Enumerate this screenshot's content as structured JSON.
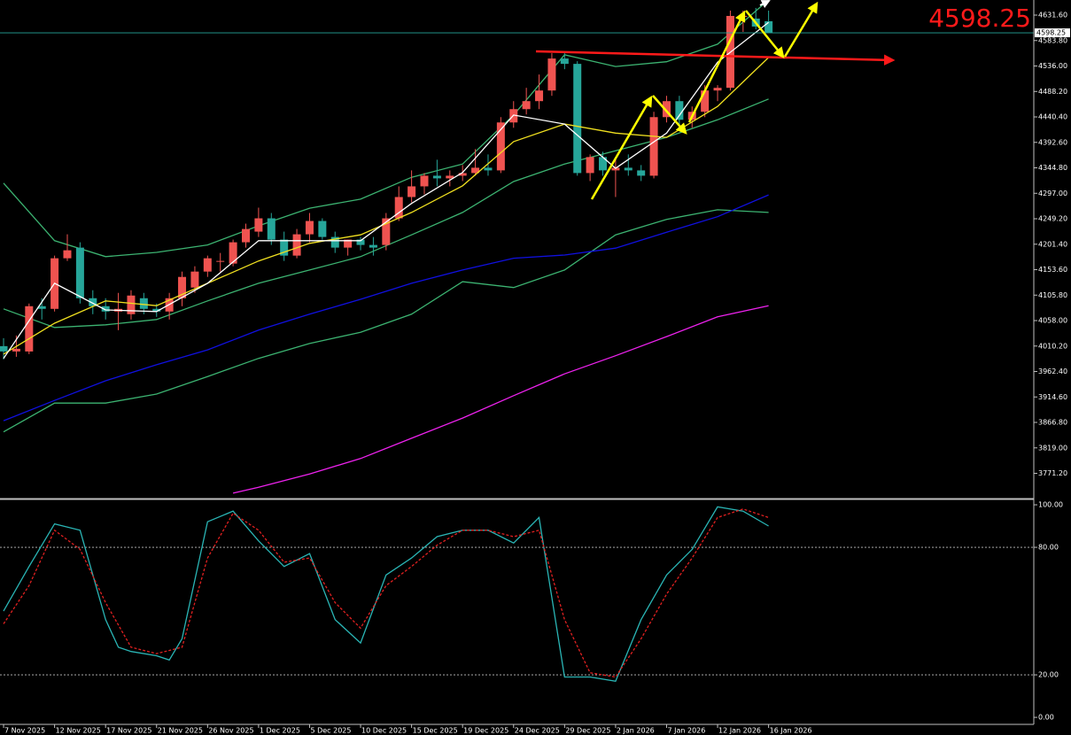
{
  "chart_data": [
    {
      "type": "candlestick",
      "xlim": [
        -0.28,
        80.8
      ],
      "ylim": [
        3725.5,
        4659.9
      ],
      "yticks": [
        {
          "value": 4631.6,
          "label": "4631.60"
        },
        {
          "value": 4583.8,
          "label": "4583.80"
        },
        {
          "value": 4536,
          "label": "4536.00"
        },
        {
          "value": 4488.2,
          "label": "4488.20"
        },
        {
          "value": 4440.4,
          "label": "4440.40"
        },
        {
          "value": 4392.6,
          "label": "4392.60"
        },
        {
          "value": 4344.8,
          "label": "4344.80"
        },
        {
          "value": 4297,
          "label": "4297.00"
        },
        {
          "value": 4249.2,
          "label": "4249.20"
        },
        {
          "value": 4201.4,
          "label": "4201.40"
        },
        {
          "value": 4153.6,
          "label": "4153.60"
        },
        {
          "value": 4105.8,
          "label": "4105.80"
        },
        {
          "value": 4058,
          "label": "4058.00"
        },
        {
          "value": 4010.2,
          "label": "4010.20"
        },
        {
          "value": 3962.4,
          "label": "3962.40"
        },
        {
          "value": 3914.6,
          "label": "3914.60"
        },
        {
          "value": 3866.8,
          "label": "3866.80"
        },
        {
          "value": 3819,
          "label": "3819.00"
        },
        {
          "value": 3771.2,
          "label": "3771.20"
        }
      ],
      "xticks": [
        {
          "value": 0,
          "label": "7 Nov 2025"
        },
        {
          "value": 4,
          "label": "12 Nov 2025"
        },
        {
          "value": 8,
          "label": "17 Nov 2025"
        },
        {
          "value": 12,
          "label": "21 Nov 2025"
        },
        {
          "value": 16,
          "label": "26 Nov 2025"
        },
        {
          "value": 20,
          "label": "1 Dec 2025"
        },
        {
          "value": 24,
          "label": "5 Dec 2025"
        },
        {
          "value": 28,
          "label": "10 Dec 2025"
        },
        {
          "value": 32,
          "label": "15 Dec 2025"
        },
        {
          "value": 36,
          "label": "19 Dec 2025"
        },
        {
          "value": 40,
          "label": "24 Dec 2025"
        },
        {
          "value": 44,
          "label": "29 Dec 2025"
        },
        {
          "value": 48,
          "label": "2 Jan 2026"
        },
        {
          "value": 52,
          "label": "7 Jan 2026"
        },
        {
          "value": 56,
          "label": "12 Jan 2026"
        },
        {
          "value": 60,
          "label": "16 Jan 2026"
        }
      ],
      "open": [
        4010,
        4000,
        4000,
        4085,
        4080,
        4175,
        4195,
        4100,
        4085,
        4075,
        4070,
        4100,
        4080,
        4075,
        4100,
        4120,
        4150,
        4170,
        4165,
        4205,
        4225,
        4250,
        4210,
        4180,
        4220,
        4245,
        4215,
        4195,
        4210,
        4200,
        4200,
        4250,
        4290,
        4310,
        4330,
        4325,
        4330,
        4335,
        4345,
        4340,
        4430,
        4455,
        4470,
        4490,
        4550,
        4540,
        4335,
        4365,
        4340,
        4345,
        4340,
        4330,
        4440,
        4470,
        4435,
        4450,
        4490,
        4495,
        4630,
        4625,
        4620
      ],
      "high": [
        4025,
        4030,
        4090,
        4100,
        4180,
        4220,
        4205,
        4115,
        4100,
        4110,
        4115,
        4110,
        4090,
        4110,
        4150,
        4160,
        4180,
        4185,
        4210,
        4240,
        4270,
        4260,
        4225,
        4230,
        4260,
        4250,
        4225,
        4210,
        4215,
        4215,
        4260,
        4310,
        4340,
        4335,
        4360,
        4340,
        4350,
        4380,
        4370,
        4440,
        4470,
        4495,
        4520,
        4560,
        4560,
        4545,
        4370,
        4375,
        4360,
        4370,
        4350,
        4450,
        4480,
        4480,
        4460,
        4500,
        4500,
        4640,
        4640,
        4645,
        4640
      ],
      "low": [
        3985,
        3990,
        3995,
        4060,
        4075,
        4170,
        4090,
        4070,
        4060,
        4040,
        4060,
        4070,
        4065,
        4060,
        4085,
        4110,
        4140,
        4150,
        4160,
        4195,
        4215,
        4200,
        4170,
        4175,
        4205,
        4210,
        4185,
        4180,
        4190,
        4180,
        4190,
        4245,
        4280,
        4295,
        4310,
        4310,
        4320,
        4330,
        4330,
        4335,
        4420,
        4445,
        4455,
        4480,
        4530,
        4330,
        4320,
        4330,
        4290,
        4330,
        4320,
        4325,
        4430,
        4425,
        4420,
        4440,
        4470,
        4490,
        4600,
        4605,
        4600
      ],
      "close": [
        4000,
        4005,
        4085,
        4080,
        4175,
        4190,
        4100,
        4085,
        4075,
        4080,
        4105,
        4080,
        4075,
        4100,
        4140,
        4150,
        4175,
        4170,
        4205,
        4230,
        4250,
        4210,
        4180,
        4220,
        4245,
        4215,
        4195,
        4210,
        4200,
        4195,
        4250,
        4290,
        4310,
        4330,
        4325,
        4330,
        4335,
        4345,
        4340,
        4430,
        4455,
        4470,
        4490,
        4550,
        4540,
        4335,
        4365,
        4340,
        4345,
        4340,
        4330,
        4440,
        4470,
        4435,
        4450,
        4490,
        4495,
        4630,
        4630,
        4610,
        4598.25
      ],
      "up_color": "#ef5350",
      "down_color": "#26a69a",
      "series": [
        {
          "color": "#3cb371",
          "x": [
            0,
            4,
            8,
            12,
            16,
            20,
            24,
            28,
            32,
            36,
            40,
            44,
            48,
            52,
            56,
            60
          ],
          "values": [
            4316,
            4208,
            4178,
            4186,
            4200,
            4236,
            4269,
            4286,
            4327,
            4352,
            4444,
            4557,
            4535,
            4544,
            4577,
            4660
          ]
        },
        {
          "color": "#3cb371",
          "x": [
            0,
            4,
            8,
            12,
            16,
            20,
            24,
            28,
            32,
            36,
            40,
            44,
            48,
            52,
            56,
            60
          ],
          "values": [
            4080,
            4045,
            4050,
            4060,
            4095,
            4128,
            4153,
            4178,
            4219,
            4261,
            4319,
            4352,
            4377,
            4402,
            4435,
            4474
          ]
        },
        {
          "color": "#3cb371",
          "x": [
            0,
            4,
            8,
            12,
            16,
            20,
            24,
            28,
            32,
            36,
            40,
            44,
            48,
            52,
            56,
            60
          ],
          "values": [
            3849,
            3903,
            3903,
            3920,
            3953,
            3987,
            4015,
            4036,
            4070,
            4131,
            4120,
            4153,
            4219,
            4248,
            4266,
            4261
          ]
        },
        {
          "color": "#1010e0",
          "x": [
            0,
            4,
            8,
            12,
            16,
            20,
            24,
            28,
            32,
            36,
            40,
            44,
            48,
            52,
            56,
            60
          ],
          "values": [
            3870,
            3908,
            3945,
            3975,
            4003,
            4040,
            4070,
            4098,
            4128,
            4153,
            4175,
            4181,
            4194,
            4224,
            4253,
            4294
          ]
        },
        {
          "color": "#ee22ee",
          "x": [
            18,
            20,
            24,
            28,
            32,
            36,
            40,
            44,
            48,
            52,
            56,
            60
          ],
          "values": [
            3734,
            3745,
            3770,
            3799,
            3837,
            3875,
            3917,
            3958,
            3992,
            4028,
            4065,
            4086
          ]
        },
        {
          "color": "#f0e020",
          "x": [
            0,
            4,
            8,
            12,
            16,
            20,
            24,
            28,
            32,
            36,
            40,
            44,
            48,
            52,
            56,
            60
          ],
          "values": [
            3995,
            4053,
            4095,
            4086,
            4128,
            4170,
            4203,
            4219,
            4261,
            4311,
            4394,
            4427,
            4410,
            4402,
            4460,
            4552
          ]
        },
        {
          "color": "#ffffff",
          "x": [
            0,
            4,
            8,
            12,
            16,
            20,
            24,
            28,
            32,
            36,
            40,
            44,
            48,
            52,
            56,
            60
          ],
          "values": [
            3987,
            4128,
            4078,
            4075,
            4128,
            4208,
            4208,
            4208,
            4278,
            4336,
            4444,
            4427,
            4344,
            4410,
            4543,
            4618
          ]
        }
      ],
      "current_price": 4598.25,
      "price_line_color": "#26a69a",
      "price_text_color": "#ff1a1a"
    },
    {
      "type": "line",
      "xlim": [
        -0.28,
        80.8
      ],
      "ylim": [
        -3.3,
        102.1
      ],
      "yticks": [
        {
          "value": 100,
          "label": "100.00"
        },
        {
          "value": 80,
          "label": "80.00"
        },
        {
          "value": 20,
          "label": "20.00"
        },
        {
          "value": 0,
          "label": "0.00"
        }
      ],
      "levels": [
        80,
        20
      ],
      "series": [
        {
          "color": "#2ab5b5",
          "dash": false,
          "x": [
            0,
            2,
            4,
            6,
            8,
            9,
            10,
            12,
            13,
            14,
            16,
            18,
            20,
            22,
            24,
            26,
            28,
            30,
            32,
            34,
            36,
            38,
            40,
            42,
            44,
            46,
            48,
            50,
            52,
            54,
            56,
            58,
            60
          ],
          "values": [
            50,
            71,
            91,
            88,
            46,
            33,
            31,
            29,
            27,
            37,
            92,
            97,
            83,
            71,
            77,
            46,
            35,
            67,
            75,
            85,
            88,
            88,
            82,
            94,
            19,
            19,
            17,
            46,
            67,
            79,
            99,
            97,
            90
          ]
        },
        {
          "color": "#e02020",
          "dash": true,
          "x": [
            0,
            2,
            4,
            6,
            8,
            10,
            12,
            14,
            16,
            18,
            20,
            22,
            24,
            26,
            28,
            30,
            32,
            34,
            36,
            38,
            40,
            42,
            44,
            46,
            48,
            50,
            52,
            54,
            56,
            58,
            60
          ],
          "values": [
            44,
            62,
            88,
            79,
            54,
            33,
            30,
            33,
            75,
            96,
            88,
            73,
            75,
            54,
            42,
            62,
            71,
            81,
            88,
            88,
            85,
            88,
            46,
            21,
            19,
            37,
            58,
            75,
            94,
            98,
            94
          ]
        }
      ]
    }
  ]
}
